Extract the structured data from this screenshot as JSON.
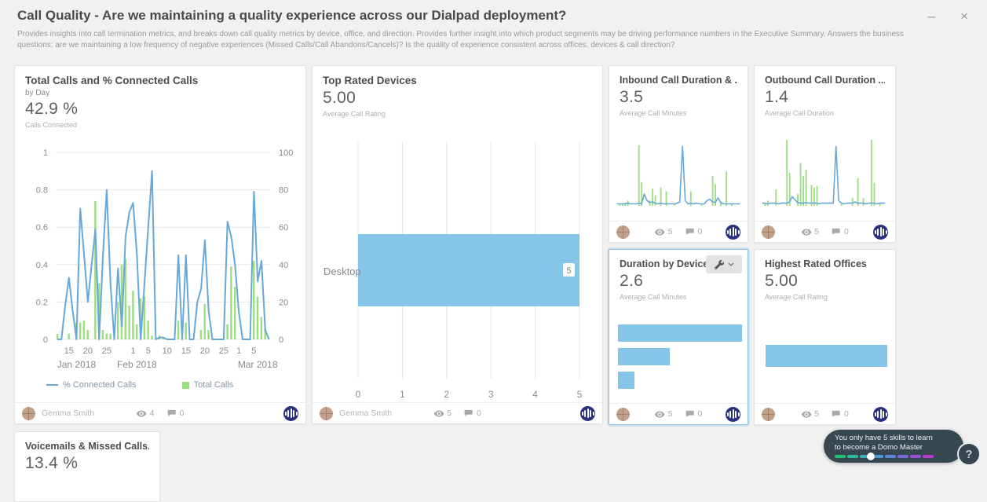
{
  "window": {
    "title": "Call Quality - Are we maintaining a quality experience across our Dialpad deployment?",
    "description": "Provides insights into call termination metrics, and breaks down call quality metrics by device, office, and direction. Provides further insight into which product segments may be driving performance numbers in the Executive Summary. Answers the business questions: are we maintaining a low frequency of negative experiences (Missed Calls/Call Abandons/Cancels)? Is the quality of experience consistent across offices, devices & call direction?",
    "minimize_glyph": "–",
    "close_glyph": "×"
  },
  "cards": [
    {
      "title": "Total Calls and % Connected Calls",
      "subtitle": "by Day",
      "value": "42.9 %",
      "metric": "Calls Connected",
      "footer": {
        "owner": "Gemma Smith",
        "views": "4",
        "comments": "0"
      }
    },
    {
      "title": "Top Rated Devices",
      "value": "5.00",
      "metric": "Average Call Rating",
      "footer": {
        "owner": "Gemma Smith",
        "views": "5",
        "comments": "0"
      }
    },
    {
      "title": "Inbound Call Duration & ...",
      "value": "3.5",
      "metric": "Average Call Minutes",
      "footer": {
        "views": "5",
        "comments": "0"
      }
    },
    {
      "title": "Outbound Call Duration ...",
      "value": "1.4",
      "metric": "Average Call Duration",
      "footer": {
        "views": "5",
        "comments": "0"
      }
    },
    {
      "title": "Duration by Device",
      "value": "2.6",
      "metric": "Average Call Minutes",
      "selected": true,
      "footer": {
        "views": "5",
        "comments": "0"
      }
    },
    {
      "title": "Highest Rated Offices",
      "value": "5.00",
      "metric": "Average Call Rating",
      "footer": {
        "views": "5",
        "comments": "0"
      }
    },
    {
      "title": "Voicemails & Missed Calls...",
      "value": "13.4 %"
    }
  ],
  "chart_data": [
    {
      "type": "combo",
      "title": "Total Calls and % Connected Calls by Day",
      "left_axis": {
        "ticks": [
          1,
          0.8,
          0.6,
          0.4,
          0.2,
          0
        ],
        "range": [
          0,
          1
        ]
      },
      "right_axis": {
        "ticks": [
          100,
          80,
          60,
          40,
          20,
          0
        ],
        "range": [
          0,
          100
        ]
      },
      "x_ticks": [
        {
          "label": "15",
          "i": 3
        },
        {
          "label": "20",
          "i": 8
        },
        {
          "label": "25",
          "i": 13
        },
        {
          "label": "1",
          "i": 20
        },
        {
          "label": "5",
          "i": 24
        },
        {
          "label": "10",
          "i": 29
        },
        {
          "label": "15",
          "i": 34
        },
        {
          "label": "20",
          "i": 39
        },
        {
          "label": "25",
          "i": 44
        },
        {
          "label": "1",
          "i": 48
        },
        {
          "label": "5",
          "i": 52
        }
      ],
      "month_labels": [
        {
          "label": "Jan 2018",
          "i": 5
        },
        {
          "label": "Feb 2018",
          "i": 21
        },
        {
          "label": "Mar 2018",
          "i": 53
        }
      ],
      "series": [
        {
          "name": "% Connected Calls",
          "type": "line",
          "axis": "left",
          "color": "#68a8d8",
          "values": [
            0,
            0,
            0.18,
            0.33,
            0.15,
            0,
            0.7,
            0.45,
            0.2,
            0.4,
            0.59,
            0,
            0.45,
            0.8,
            0.3,
            0,
            0.38,
            0.07,
            0.55,
            0.68,
            0.73,
            0.45,
            0,
            0.3,
            0.6,
            0.9,
            0,
            0.01,
            0.01,
            0,
            0,
            0,
            0.45,
            0,
            0.45,
            0,
            0,
            0.2,
            0.27,
            0.53,
            0.15,
            0,
            0,
            0,
            0,
            0.63,
            0.55,
            0.4,
            0.15,
            0,
            0,
            0,
            0.79,
            0.31,
            0.42,
            0.05,
            0
          ]
        },
        {
          "name": "Total Calls",
          "type": "bar",
          "axis": "right",
          "color": "#9bdd80",
          "values": [
            3,
            0,
            0,
            3,
            0,
            9,
            9,
            10,
            5,
            0,
            74,
            30,
            5,
            3,
            3,
            0,
            20,
            40,
            43,
            18,
            26,
            8,
            22,
            23,
            10,
            2,
            1,
            2,
            1,
            0,
            0,
            0,
            10,
            0,
            9,
            0,
            0,
            0,
            5,
            19,
            5,
            0,
            0,
            0,
            0,
            8,
            39,
            28,
            0,
            0,
            0,
            0,
            42,
            23,
            12,
            6,
            0
          ]
        }
      ]
    },
    {
      "type": "bar",
      "orientation": "horizontal",
      "title": "Top Rated Devices",
      "categories": [
        "Desktop"
      ],
      "values": [
        5
      ],
      "value_labels": [
        "5"
      ],
      "x_ticks": [
        0,
        1,
        2,
        3,
        4,
        5
      ],
      "xlim": [
        0,
        5
      ],
      "color": "#85c6e8"
    },
    {
      "type": "combo",
      "title": "Inbound Call Duration sparkline",
      "series": [
        {
          "name": "bars",
          "type": "bar",
          "color": "#9bdd80",
          "values": [
            0,
            2,
            3,
            5,
            8,
            0,
            0,
            0,
            92,
            36,
            0,
            0,
            8,
            26,
            16,
            0,
            28,
            0,
            22,
            0,
            0,
            3,
            0,
            0,
            0,
            0,
            0,
            22,
            0,
            0,
            0,
            3,
            0,
            0,
            0,
            45,
            33,
            0,
            6,
            0,
            52,
            0,
            3,
            0,
            0,
            0
          ]
        },
        {
          "name": "line",
          "type": "line",
          "color": "#68a8d8",
          "values": [
            3,
            3,
            3,
            3,
            4,
            3,
            3,
            3,
            4,
            3,
            18,
            8,
            5,
            6,
            4,
            3,
            4,
            3,
            3,
            3,
            3,
            3,
            4,
            6,
            90,
            8,
            3,
            4,
            3,
            4,
            3,
            3,
            3,
            8,
            10,
            6,
            5,
            12,
            5,
            3,
            3,
            3,
            3,
            3,
            3,
            3
          ]
        }
      ]
    },
    {
      "type": "combo",
      "title": "Outbound Call Duration sparkline",
      "series": [
        {
          "name": "bars",
          "type": "bar",
          "color": "#9bdd80",
          "values": [
            0,
            3,
            8,
            0,
            0,
            25,
            0,
            0,
            0,
            100,
            50,
            0,
            0,
            18,
            65,
            45,
            55,
            0,
            32,
            28,
            30,
            0,
            0,
            0,
            0,
            0,
            0,
            0,
            0,
            3,
            0,
            0,
            0,
            12,
            0,
            42,
            0,
            12,
            0,
            0,
            100,
            35,
            0,
            3,
            0,
            0
          ]
        },
        {
          "name": "line",
          "type": "line",
          "color": "#68a8d8",
          "values": [
            4,
            4,
            3,
            4,
            4,
            4,
            3,
            4,
            4,
            4,
            6,
            14,
            9,
            5,
            4,
            4,
            5,
            4,
            4,
            4,
            4,
            3,
            4,
            4,
            4,
            4,
            4,
            90,
            8,
            4,
            3,
            4,
            4,
            4,
            6,
            4,
            4,
            4,
            3,
            4,
            4,
            4,
            3,
            4,
            4,
            4
          ]
        }
      ]
    },
    {
      "type": "bar",
      "orientation": "horizontal",
      "title": "Duration by Device",
      "values_pct_of_max": [
        100,
        42,
        13
      ],
      "color": "#85c6e8"
    },
    {
      "type": "bar",
      "orientation": "horizontal",
      "title": "Highest Rated Offices",
      "values_pct_of_max": [
        97
      ],
      "color": "#85c6e8"
    }
  ],
  "colors": {
    "line_blue": "#68a8d8",
    "bar_green": "#9bdd80",
    "bar_blue": "#85c6e8",
    "selected_border": "#8fc1e3",
    "domo_navy": "#28327c",
    "tooltip_bg": "#37474f",
    "background": "#f1f1f1"
  },
  "domo_tooltip": {
    "text": "You only have 5 skills to learn to become a Domo Master",
    "help_glyph": "?",
    "segments": [
      "#21bf73",
      "#2cbb9c",
      "#3cb0bd",
      "#4a9bd6",
      "#5d87dc",
      "#7a6ad8",
      "#9c4fd6",
      "#bd37cf"
    ],
    "knob_index": 2
  }
}
